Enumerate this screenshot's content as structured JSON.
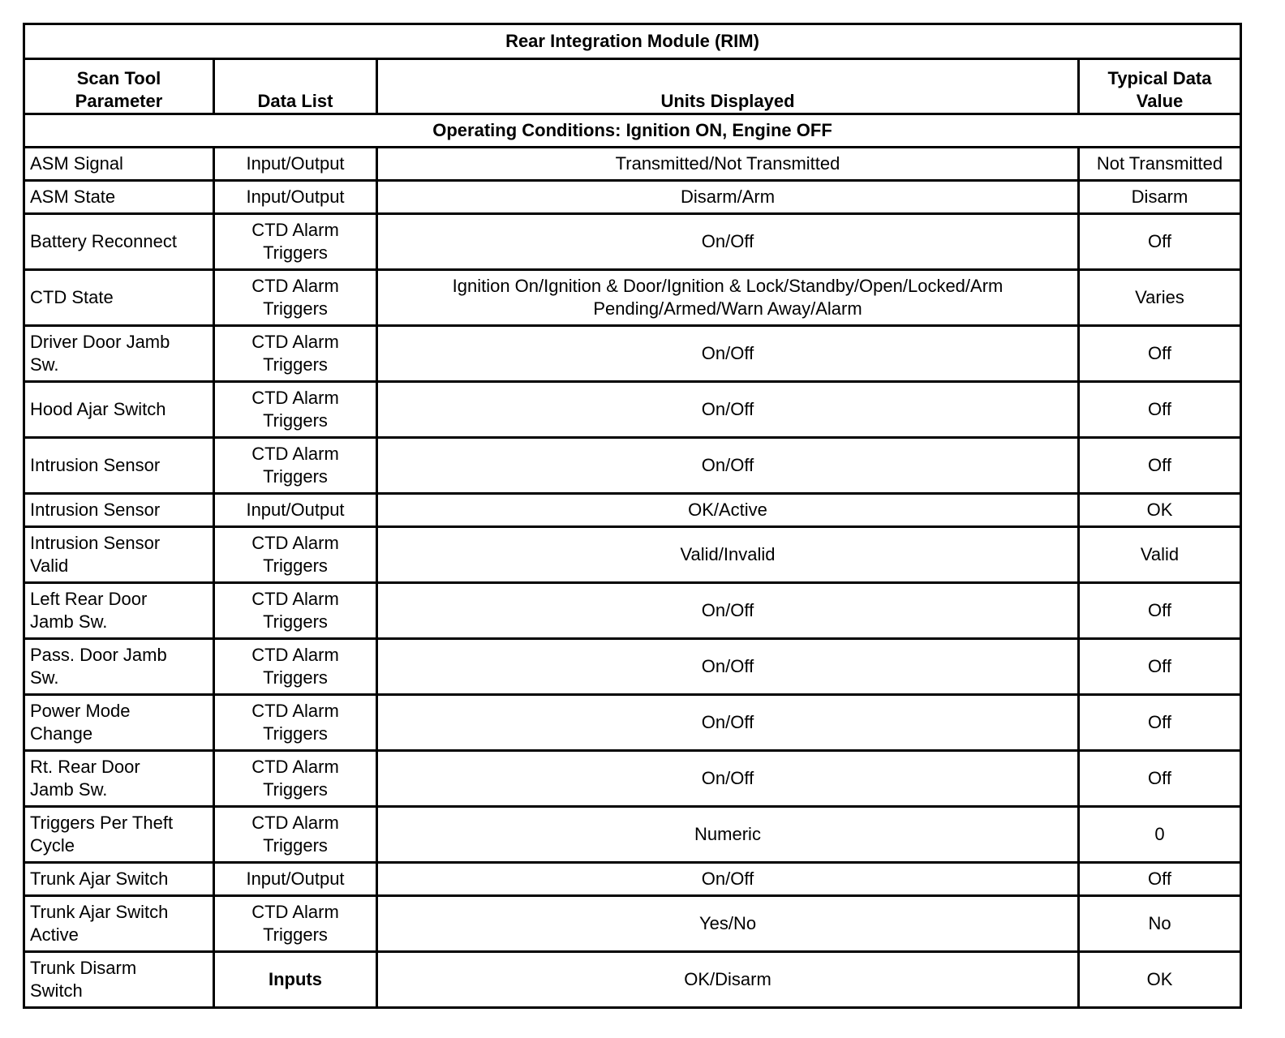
{
  "table": {
    "title": "Rear Integration Module (RIM)",
    "header": [
      "Scan Tool\nParameter",
      "Data List",
      "Units Displayed",
      "Typical Data\nValue"
    ],
    "condition": "Operating Conditions: Ignition ON, Engine OFF",
    "rows": [
      [
        "ASM Signal",
        "Input/Output",
        "Transmitted/Not Transmitted",
        "Not Transmitted"
      ],
      [
        "ASM State",
        "Input/Output",
        "Disarm/Arm",
        "Disarm"
      ],
      [
        "Battery Reconnect",
        "CTD Alarm\nTriggers",
        "On/Off",
        "Off"
      ],
      [
        "CTD State",
        "CTD Alarm\nTriggers",
        "Ignition On/Ignition & Door/Ignition & Lock/Standby/Open/Locked/Arm\nPending/Armed/Warn Away/Alarm",
        "Varies"
      ],
      [
        "Driver Door Jamb\nSw.",
        "CTD Alarm\nTriggers",
        "On/Off",
        "Off"
      ],
      [
        "Hood Ajar Switch",
        "CTD Alarm\nTriggers",
        "On/Off",
        "Off"
      ],
      [
        "Intrusion Sensor",
        "CTD Alarm\nTriggers",
        "On/Off",
        "Off"
      ],
      [
        "Intrusion Sensor",
        "Input/Output",
        "OK/Active",
        "OK"
      ],
      [
        "Intrusion Sensor\nValid",
        "CTD Alarm\nTriggers",
        "Valid/Invalid",
        "Valid"
      ],
      [
        "Left Rear Door\nJamb Sw.",
        "CTD Alarm\nTriggers",
        "On/Off",
        "Off"
      ],
      [
        "Pass. Door Jamb\nSw.",
        "CTD Alarm\nTriggers",
        "On/Off",
        "Off"
      ],
      [
        "Power Mode\nChange",
        "CTD Alarm\nTriggers",
        "On/Off",
        "Off"
      ],
      [
        "Rt. Rear Door\nJamb Sw.",
        "CTD Alarm\nTriggers",
        "On/Off",
        "Off"
      ],
      [
        "Triggers Per Theft\nCycle",
        "CTD Alarm\nTriggers",
        "Numeric",
        "0"
      ],
      [
        "Trunk Ajar Switch",
        "Input/Output",
        "On/Off",
        "Off"
      ],
      [
        "Trunk Ajar Switch\nActive",
        "CTD Alarm\nTriggers",
        "Yes/No",
        "No"
      ],
      [
        "Trunk Disarm\nSwitch",
        "Inputs",
        "OK/Disarm",
        "OK"
      ]
    ]
  }
}
